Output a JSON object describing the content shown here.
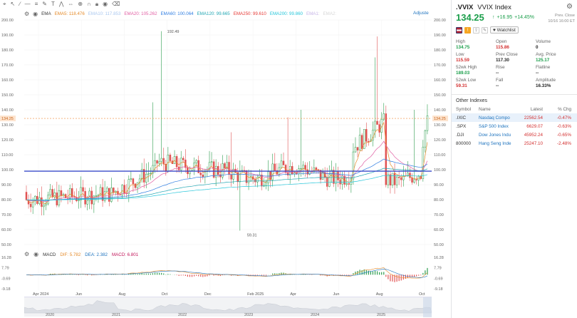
{
  "toolbar": {
    "indicator_name": "EMA",
    "adjust_label": "Adjuste"
  },
  "ema_legend": [
    {
      "label": "EMA5:",
      "value": "118.476",
      "color": "#e58b2a"
    },
    {
      "label": "EMA10:",
      "value": "117.853",
      "color": "#a9c7ef"
    },
    {
      "label": "EMA20:",
      "value": "105.262",
      "color": "#e15fa3"
    },
    {
      "label": "EMA60:",
      "value": "100.064",
      "color": "#2f7de1"
    },
    {
      "label": "EMA120:",
      "value": "99.665",
      "color": "#22a6b3"
    },
    {
      "label": "EMA250:",
      "value": "99.610",
      "color": "#e53935"
    },
    {
      "label": "EMA200:",
      "value": "99.860",
      "color": "#26c6da"
    },
    {
      "label": "EMA1:",
      "value": "",
      "color": "#c5b3e6"
    },
    {
      "label": "EMA2:",
      "value": "",
      "color": "#d7d7d7"
    }
  ],
  "macd": {
    "name": "MACD",
    "dif_label": "DIF:",
    "dif_value": "5.782",
    "dea_label": "DEA:",
    "dea_value": "2.382",
    "macd_label": "MACD:",
    "macd_value": "6.801",
    "axis_labels": [
      "16.28",
      "7.79",
      "-0.69",
      "-9.18"
    ]
  },
  "chart_data": {
    "type": "candlestick",
    "y_axis": [
      "200.00",
      "190.00",
      "180.00",
      "170.00",
      "160.00",
      "150.00",
      "140.00",
      "130.00",
      "120.00",
      "110.00",
      "100.00",
      "90.00",
      "80.00",
      "70.00",
      "60.00",
      "50.00"
    ],
    "ylim": [
      50,
      200
    ],
    "x_labels": [
      "Apr 2024",
      "Jun",
      "Aug",
      "Oct",
      "Dec",
      "Feb 2025",
      "Apr",
      "Jun",
      "Aug",
      "Oct"
    ],
    "last_price_tag": "134.25",
    "annotations": [
      {
        "text": "192.49",
        "value": 192.49
      },
      {
        "text": "59.31",
        "value": 59.31
      }
    ],
    "horizontal_line": 99.0,
    "timeline_years": [
      "2020",
      "2021",
      "2022",
      "2023",
      "2024",
      "2025"
    ]
  },
  "side": {
    "symbol": ".VVIX",
    "name": "VVIX Index",
    "price": "134.25",
    "arrow": "↑",
    "change": "+16.95",
    "change_pct": "+14.45%",
    "prev_close_label": "Prev. Close",
    "time": "10/16 16:00 ET",
    "watchlist_label": "Watchlist",
    "stats": [
      {
        "label": "High",
        "value": "134.75",
        "color": "#1a9e4a"
      },
      {
        "label": "Open",
        "value": "115.86",
        "color": "#d32f2f"
      },
      {
        "label": "Volume",
        "value": "0",
        "color": "#222"
      },
      {
        "label": "Low",
        "value": "115.59",
        "color": "#d32f2f"
      },
      {
        "label": "Prev Close",
        "value": "117.30",
        "color": "#222"
      },
      {
        "label": "Avg. Price",
        "value": "125.17",
        "color": "#1a9e4a"
      },
      {
        "label": "52wk High",
        "value": "189.03",
        "color": "#1a9e4a"
      },
      {
        "label": "Rise",
        "value": "--",
        "color": "#222"
      },
      {
        "label": "Flatline",
        "value": "--",
        "color": "#222"
      },
      {
        "label": "52wk Low",
        "value": "59.31",
        "color": "#d32f2f"
      },
      {
        "label": "Fall",
        "value": "--",
        "color": "#222"
      },
      {
        "label": "Amplitude",
        "value": "16.33%",
        "color": "#222"
      }
    ],
    "other_title": "Other Indexes",
    "table_headers": [
      "Symbol",
      "Name",
      "Latest",
      "% Chg"
    ],
    "table_rows": [
      {
        "symbol": ".IXIC",
        "name": "Nasdaq Compo",
        "latest": "22562.54",
        "chg": "-0.47%"
      },
      {
        "symbol": ".SPX",
        "name": "S&P 500 Index",
        "latest": "6629.07",
        "chg": "-0.63%"
      },
      {
        "symbol": ".DJI",
        "name": "Dow Jones Indu",
        "latest": "45952.24",
        "chg": "-0.65%"
      },
      {
        "symbol": "800000",
        "name": "Hang Seng Inde",
        "latest": "25247.10",
        "chg": "-2.48%"
      }
    ]
  }
}
